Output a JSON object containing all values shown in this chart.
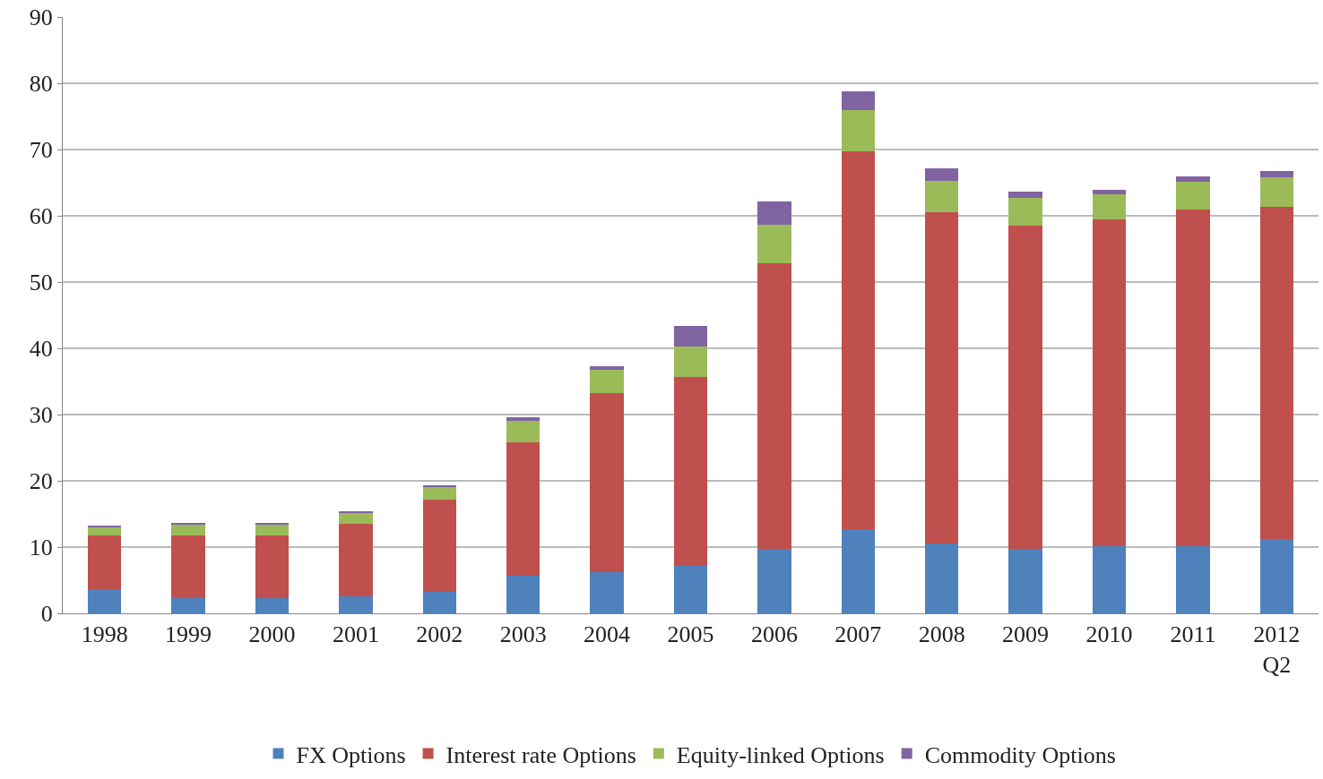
{
  "chart_data": {
    "type": "bar",
    "stacked": true,
    "categories": [
      "1998",
      "1999",
      "2000",
      "2001",
      "2002",
      "2003",
      "2004",
      "2005",
      "2006",
      "2007",
      "2008",
      "2009",
      "2010",
      "2011",
      "2012\nQ2"
    ],
    "series": [
      {
        "name": "FX Options",
        "color": "#4f81bd",
        "values": [
          3.7,
          2.3,
          2.3,
          2.6,
          3.2,
          5.7,
          6.2,
          7.1,
          9.7,
          12.7,
          10.6,
          9.7,
          10.2,
          10.2,
          11.2
        ]
      },
      {
        "name": "Interest rate Options",
        "color": "#c0504d",
        "values": [
          8.0,
          9.4,
          9.4,
          10.9,
          13.9,
          20.1,
          27.0,
          28.6,
          43.2,
          57.0,
          50.0,
          48.8,
          49.2,
          50.7,
          50.2
        ]
      },
      {
        "name": "Equity-linked Options",
        "color": "#9bbb59",
        "values": [
          1.4,
          1.8,
          1.8,
          1.7,
          2.0,
          3.2,
          3.6,
          4.6,
          5.8,
          6.3,
          4.7,
          4.2,
          3.8,
          4.2,
          4.4
        ]
      },
      {
        "name": "Commodity Options",
        "color": "#8064a2",
        "values": [
          0.2,
          0.1,
          0.1,
          0.1,
          0.2,
          0.6,
          0.5,
          3.1,
          3.5,
          2.8,
          1.8,
          0.9,
          0.7,
          0.9,
          0.9
        ]
      }
    ],
    "ylim": [
      0,
      90
    ],
    "yticks": [
      0,
      10,
      20,
      30,
      40,
      50,
      60,
      70,
      80,
      90
    ],
    "grid": "y",
    "legend": "bottom"
  }
}
